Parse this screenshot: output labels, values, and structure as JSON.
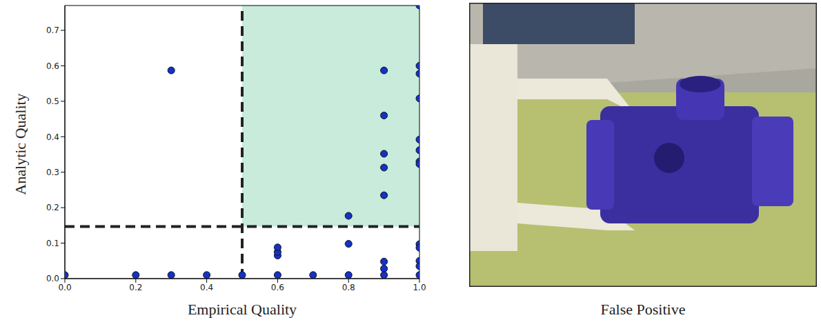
{
  "chart_data": {
    "type": "scatter",
    "x_label": "Empirical Quality",
    "y_label": "Analytic Quality",
    "x": [
      0.0,
      0.2,
      0.3,
      0.4,
      0.5,
      0.6,
      0.7,
      0.8,
      0.9,
      1.0,
      0.3,
      0.6,
      0.6,
      0.6,
      0.8,
      0.8,
      0.9,
      0.9,
      0.9,
      0.9,
      0.9,
      0.9,
      0.9,
      1.0,
      1.0,
      1.0,
      1.0,
      1.0,
      1.0,
      1.0,
      1.0,
      1.0,
      1.0,
      1.0,
      1.0
    ],
    "values": [
      0.01,
      0.01,
      0.01,
      0.01,
      0.01,
      0.01,
      0.01,
      0.01,
      0.01,
      0.01,
      0.587,
      0.065,
      0.075,
      0.088,
      0.098,
      0.177,
      0.587,
      0.46,
      0.352,
      0.313,
      0.235,
      0.048,
      0.028,
      0.6,
      0.578,
      0.508,
      0.392,
      0.362,
      0.33,
      0.323,
      0.097,
      0.087,
      0.05,
      0.035,
      0.77
    ],
    "color": "#1432c8",
    "marker": "circle",
    "xlim": [
      0,
      1
    ],
    "ylim": [
      0,
      0.77
    ],
    "xticks": [
      {
        "value": 0,
        "label": "0.0"
      },
      0.2,
      0.4,
      0.6,
      0.8,
      {
        "value": 1,
        "label": "1.0"
      }
    ],
    "yticks": [
      {
        "value": 0,
        "label": "0.0"
      },
      0.1,
      0.2,
      0.3,
      0.4,
      0.5,
      0.6,
      0.7
    ],
    "thresholds": {
      "x": 0.5,
      "y": 0.147
    },
    "region_color": "#c8ebdc",
    "grid": false
  },
  "image": {
    "caption": "False Positive"
  }
}
